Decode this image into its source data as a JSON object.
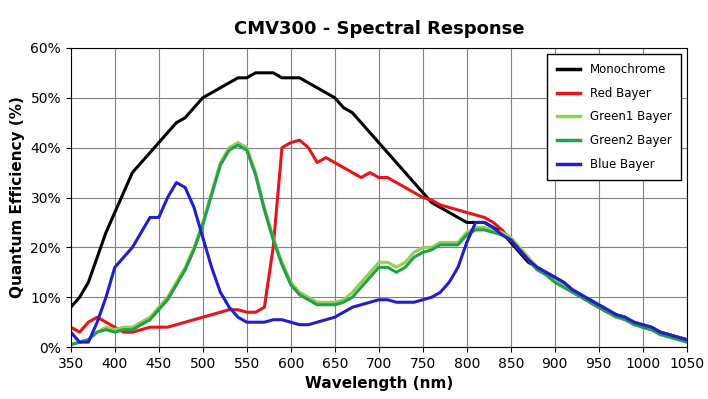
{
  "chart_data": {
    "type": "line",
    "title": "CMV300 - Spectral Response",
    "x_label": "Wavelength (nm)",
    "y_label": "Quantum Efficiency (%)",
    "x": [
      350,
      360,
      370,
      380,
      390,
      400,
      410,
      420,
      430,
      440,
      450,
      460,
      470,
      480,
      490,
      500,
      510,
      520,
      530,
      540,
      550,
      560,
      570,
      580,
      590,
      600,
      610,
      620,
      630,
      640,
      650,
      660,
      670,
      680,
      690,
      700,
      710,
      720,
      730,
      740,
      750,
      760,
      770,
      780,
      790,
      800,
      810,
      820,
      830,
      840,
      850,
      860,
      870,
      880,
      890,
      900,
      910,
      920,
      930,
      940,
      950,
      960,
      970,
      980,
      990,
      1000,
      1010,
      1020,
      1030,
      1040,
      1050
    ],
    "series": [
      {
        "name": "Monochrome",
        "color": "#000000",
        "values": [
          8,
          10,
          13,
          18,
          23,
          27,
          31,
          35,
          37,
          39,
          41,
          43,
          45,
          46,
          48,
          50,
          51,
          52,
          53,
          54,
          54,
          55,
          55,
          55,
          54,
          54,
          54,
          53,
          52,
          51,
          50,
          48,
          47,
          45,
          43,
          41,
          39,
          37,
          35,
          33,
          31,
          29,
          28,
          27,
          26,
          25,
          25,
          25,
          24,
          23,
          21,
          19,
          17,
          16,
          15,
          14,
          13,
          11.5,
          10.5,
          9,
          8,
          7,
          6.5,
          5.5,
          5,
          4,
          3.5,
          3,
          2.5,
          2,
          1.5
        ]
      },
      {
        "name": "Red Bayer",
        "color": "#e8141a",
        "values": [
          4,
          3,
          5,
          6,
          5,
          4,
          3,
          3,
          3.5,
          4,
          4,
          4,
          4.5,
          5,
          5.5,
          6,
          6.5,
          7,
          7.5,
          7.5,
          7,
          7,
          8,
          20,
          40,
          41,
          41.5,
          40,
          37,
          38,
          37,
          36,
          35,
          34,
          35,
          34,
          34,
          33,
          32,
          31,
          30,
          29.5,
          28.5,
          28,
          27.5,
          27,
          26.5,
          26,
          25,
          23.5,
          21.5,
          19.5,
          17.5,
          16,
          15,
          14,
          12.5,
          11.5,
          10.5,
          9.5,
          8.5,
          7.5,
          6.5,
          6,
          5,
          4.5,
          4,
          3,
          2.5,
          2,
          1.5
        ]
      },
      {
        "name": "Green1 Bayer",
        "color": "#92d050",
        "values": [
          0.5,
          1,
          1.5,
          3,
          4,
          3.5,
          4,
          4,
          5,
          6,
          8,
          10,
          13,
          16,
          20,
          25,
          31,
          37,
          40,
          41,
          40,
          35,
          28,
          22,
          17,
          13,
          11,
          10,
          9,
          9,
          9,
          9.5,
          11,
          13,
          15,
          17,
          17,
          16,
          17,
          19,
          20,
          20,
          21,
          21,
          21,
          23,
          24,
          24,
          23.5,
          23,
          22,
          20,
          18,
          16,
          15,
          13.5,
          12.5,
          11.5,
          10.5,
          9.5,
          8.5,
          7.5,
          6.5,
          6,
          5,
          4.5,
          4,
          3,
          2.5,
          2,
          1.5
        ]
      },
      {
        "name": "Green2 Bayer",
        "color": "#22a04b",
        "values": [
          0.5,
          1,
          1.5,
          3,
          3.5,
          3,
          3.5,
          3.5,
          4.5,
          5.5,
          7.5,
          9.5,
          12.5,
          15.5,
          19.5,
          24.5,
          30.5,
          36.5,
          39.5,
          40.5,
          39.5,
          34.5,
          27.5,
          21.5,
          16.5,
          12.5,
          10.5,
          9.5,
          8.5,
          8.5,
          8.5,
          9,
          10,
          12,
          14,
          16,
          16,
          15,
          16,
          18,
          19,
          19.5,
          20.5,
          20.5,
          20.5,
          22.5,
          23.5,
          23.5,
          23,
          22.5,
          21.5,
          19.5,
          17.5,
          15.5,
          14.5,
          13,
          12,
          11,
          10,
          9,
          8,
          7,
          6,
          5.5,
          4.5,
          4,
          3.5,
          2.5,
          2,
          1.5,
          1
        ]
      },
      {
        "name": "Blue Bayer",
        "color": "#1f1fd0",
        "values": [
          3,
          1,
          1,
          5,
          10,
          16,
          18,
          20,
          23,
          26,
          26,
          30,
          33,
          32,
          28,
          22,
          16,
          11,
          8,
          6,
          5,
          5,
          5,
          5.5,
          5.5,
          5,
          4.5,
          4.5,
          5,
          5.5,
          6,
          7,
          8,
          8.5,
          9,
          9.5,
          9.5,
          9,
          9,
          9,
          9.5,
          10,
          11,
          13,
          16,
          21,
          25,
          25,
          24,
          22.5,
          21.5,
          19.5,
          17.5,
          16,
          15,
          14,
          13,
          11.5,
          10.5,
          9.5,
          8.5,
          7.5,
          6.5,
          6,
          5,
          4.5,
          4,
          3,
          2.5,
          2,
          1.5
        ]
      }
    ],
    "xlim": [
      350,
      1050
    ],
    "xticks": [
      350,
      400,
      450,
      500,
      550,
      600,
      650,
      700,
      750,
      800,
      850,
      900,
      950,
      1000,
      1050
    ],
    "ylim": [
      0,
      60
    ],
    "yticks": [
      {
        "value": 0,
        "label": "0%"
      },
      {
        "value": 10,
        "label": "10%"
      },
      {
        "value": 20,
        "label": "20%"
      },
      {
        "value": 30,
        "label": "30%"
      },
      {
        "value": 40,
        "label": "40%"
      },
      {
        "value": 50,
        "label": "50%"
      },
      {
        "value": 60,
        "label": "60%"
      }
    ],
    "grid": true,
    "legend": "upper right"
  }
}
